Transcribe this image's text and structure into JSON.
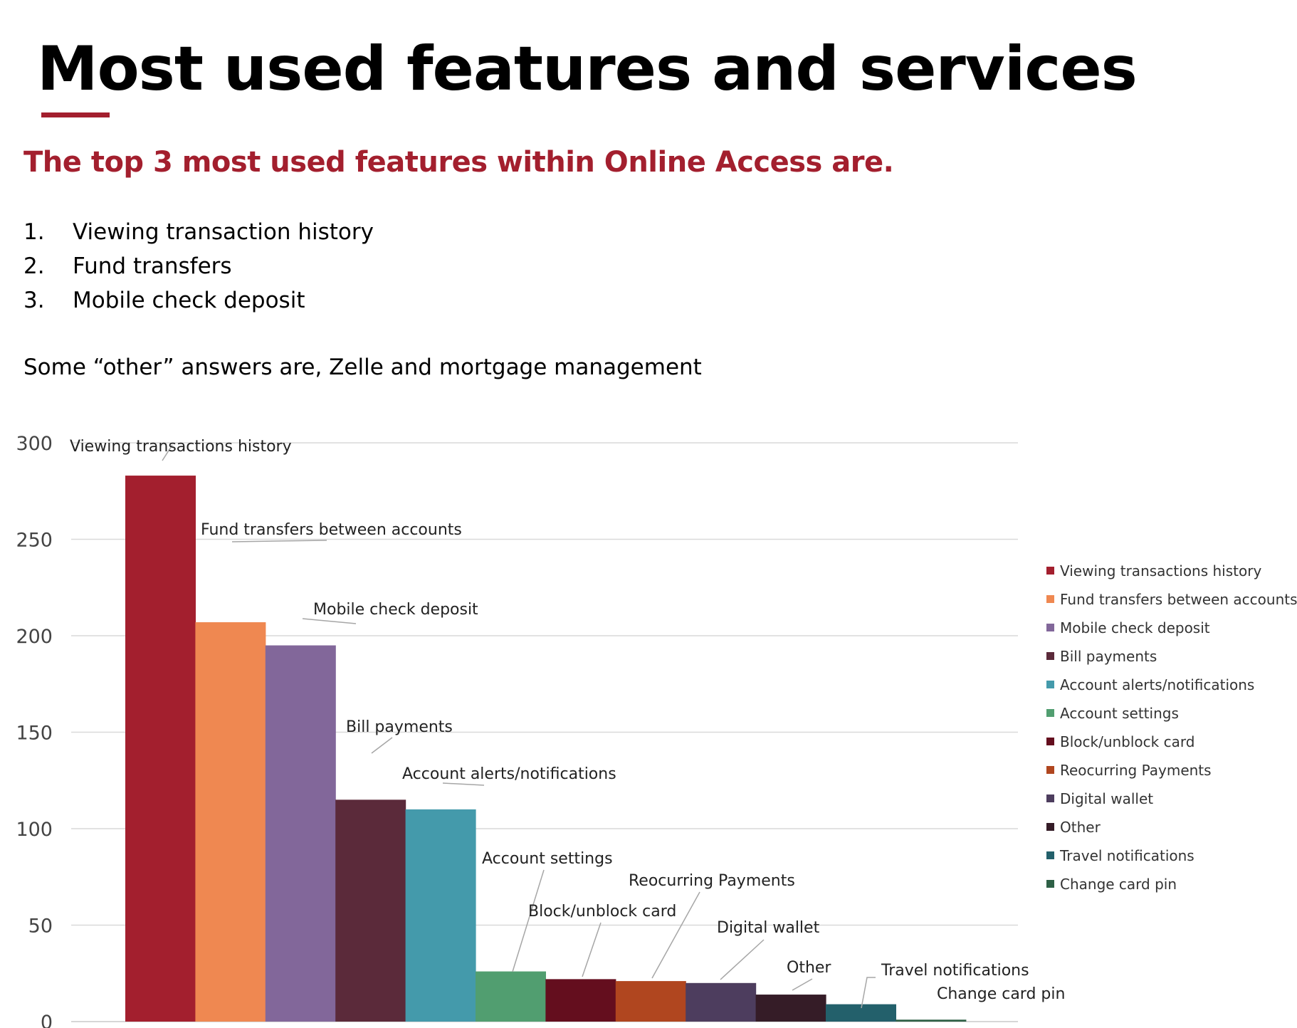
{
  "slide": {
    "title": "Most used features and services",
    "subtitle": "The top 3 most used features within Online Access are.",
    "list": [
      {
        "num": "1.",
        "text": "Viewing transaction history"
      },
      {
        "num": "2.",
        "text": "Fund transfers"
      },
      {
        "num": "3.",
        "text": "Mobile check deposit"
      }
    ],
    "note": "Some “other” answers are, Zelle and mortgage management",
    "accent_color": "#a31f2e"
  },
  "chart_data": {
    "type": "bar",
    "categories": [
      "Viewing transactions history",
      "Fund transfers between accounts",
      "Mobile check deposit",
      "Bill payments",
      "Account alerts/notifications",
      "Account settings",
      "Block/unblock card",
      "Reocurring Payments",
      "Digital wallet",
      "Other",
      "Travel notifications",
      "Change card pin"
    ],
    "values": [
      283,
      207,
      195,
      115,
      110,
      26,
      22,
      21,
      20,
      14,
      9,
      1
    ],
    "colors": [
      "#a31f2e",
      "#ef8851",
      "#82679a",
      "#5b2a3a",
      "#449aab",
      "#519e70",
      "#640e1e",
      "#b0461f",
      "#4d3d5e",
      "#351c27",
      "#23606b",
      "#2e6046"
    ],
    "ylim": [
      0,
      300
    ],
    "yticks": [
      0,
      50,
      100,
      150,
      200,
      250,
      300
    ],
    "grid": true,
    "legend": "right",
    "data_labels": true
  }
}
